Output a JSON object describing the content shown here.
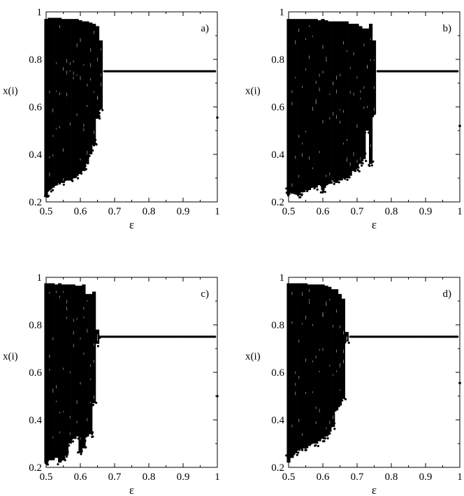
{
  "chart_data": [
    {
      "type": "scatter",
      "panel_label": "a)",
      "xlabel": "ε",
      "ylabel": "x(i)",
      "xlim": [
        0.5,
        1.0
      ],
      "ylim": [
        0.2,
        1.0
      ],
      "xticks": [
        "0.5",
        "0.6",
        "0.7",
        "0.8",
        "0.9",
        "1"
      ],
      "yticks": [
        "0.2",
        "0.4",
        "0.6",
        "0.8",
        "1"
      ],
      "chaotic_band": {
        "eps": [
          0.5,
          0.51,
          0.52,
          0.53,
          0.54,
          0.55,
          0.56,
          0.57,
          0.58,
          0.59,
          0.6,
          0.61,
          0.62,
          0.63,
          0.64,
          0.65,
          0.66
        ],
        "y_max": [
          0.97,
          0.975,
          0.975,
          0.975,
          0.975,
          0.97,
          0.97,
          0.97,
          0.97,
          0.97,
          0.965,
          0.96,
          0.96,
          0.955,
          0.95,
          0.94,
          0.88
        ],
        "y_min": [
          0.22,
          0.25,
          0.26,
          0.27,
          0.28,
          0.28,
          0.29,
          0.29,
          0.3,
          0.31,
          0.32,
          0.33,
          0.36,
          0.4,
          0.44,
          0.55,
          0.59
        ]
      },
      "fixed_point": {
        "eps_from": 0.67,
        "eps_to": 1.0,
        "step": 0.01,
        "y": 0.75
      },
      "isolated_points": [
        [
          1.0,
          0.555
        ]
      ]
    },
    {
      "type": "scatter",
      "panel_label": "b)",
      "xlabel": "ε",
      "ylabel": "x(i)",
      "xlim": [
        0.5,
        1.0
      ],
      "ylim": [
        0.2,
        1.0
      ],
      "xticks": [
        "0.5",
        "0.6",
        "0.7",
        "0.8",
        "0.9",
        "1"
      ],
      "yticks": [
        "0.2",
        "0.4",
        "0.6",
        "0.8",
        "1"
      ],
      "chaotic_band": {
        "eps": [
          0.5,
          0.51,
          0.52,
          0.53,
          0.54,
          0.55,
          0.56,
          0.57,
          0.58,
          0.59,
          0.6,
          0.61,
          0.62,
          0.63,
          0.64,
          0.65,
          0.66,
          0.67,
          0.68,
          0.69,
          0.7,
          0.71,
          0.72,
          0.73,
          0.74,
          0.75
        ],
        "y_max": [
          0.97,
          0.97,
          0.97,
          0.97,
          0.97,
          0.97,
          0.97,
          0.97,
          0.97,
          0.965,
          0.97,
          0.965,
          0.96,
          0.96,
          0.96,
          0.96,
          0.96,
          0.96,
          0.95,
          0.95,
          0.95,
          0.94,
          0.93,
          0.93,
          0.95,
          0.88
        ],
        "y_min": [
          0.23,
          0.24,
          0.24,
          0.23,
          0.24,
          0.25,
          0.25,
          0.26,
          0.26,
          0.27,
          0.25,
          0.27,
          0.28,
          0.29,
          0.28,
          0.29,
          0.3,
          0.3,
          0.31,
          0.33,
          0.34,
          0.36,
          0.38,
          0.5,
          0.36,
          0.57
        ]
      },
      "fixed_point": {
        "eps_from": 0.76,
        "eps_to": 1.0,
        "step": 0.01,
        "y": 0.75
      },
      "isolated_points": [
        [
          1.0,
          0.52
        ]
      ]
    },
    {
      "type": "scatter",
      "panel_label": "c)",
      "xlabel": "ε",
      "ylabel": "x(i)",
      "xlim": [
        0.5,
        1.0
      ],
      "ylim": [
        0.2,
        1.0
      ],
      "xticks": [
        "0.5",
        "0.6",
        "0.7",
        "0.8",
        "0.9",
        "1"
      ],
      "yticks": [
        "0.2",
        "0.4",
        "0.6",
        "0.8",
        "1"
      ],
      "chaotic_band": {
        "eps": [
          0.5,
          0.51,
          0.52,
          0.53,
          0.54,
          0.55,
          0.56,
          0.57,
          0.58,
          0.59,
          0.6,
          0.61,
          0.62,
          0.63,
          0.64,
          0.65
        ],
        "y_max": [
          0.975,
          0.975,
          0.975,
          0.97,
          0.975,
          0.97,
          0.97,
          0.97,
          0.97,
          0.965,
          0.965,
          0.97,
          0.93,
          0.93,
          0.94,
          0.78
        ],
        "y_min": [
          0.22,
          0.23,
          0.23,
          0.24,
          0.22,
          0.23,
          0.25,
          0.3,
          0.32,
          0.33,
          0.26,
          0.28,
          0.33,
          0.34,
          0.47,
          0.72
        ]
      },
      "fixed_point": {
        "eps_from": 0.66,
        "eps_to": 1.0,
        "step": 0.01,
        "y": 0.75
      },
      "isolated_points": [
        [
          1.0,
          0.5
        ]
      ]
    },
    {
      "type": "scatter",
      "panel_label": "d)",
      "xlabel": "ε",
      "ylabel": "x(i)",
      "xlim": [
        0.5,
        1.0
      ],
      "ylim": [
        0.2,
        1.0
      ],
      "xticks": [
        "0.5",
        "0.6",
        "0.7",
        "0.8",
        "0.9",
        "1"
      ],
      "yticks": [
        "0.2",
        "0.4",
        "0.6",
        "0.8",
        "1"
      ],
      "chaotic_band": {
        "eps": [
          0.5,
          0.51,
          0.52,
          0.53,
          0.54,
          0.55,
          0.56,
          0.57,
          0.58,
          0.59,
          0.6,
          0.61,
          0.62,
          0.63,
          0.64,
          0.65,
          0.66,
          0.67
        ],
        "y_max": [
          0.975,
          0.975,
          0.975,
          0.975,
          0.975,
          0.975,
          0.97,
          0.97,
          0.97,
          0.97,
          0.97,
          0.965,
          0.96,
          0.95,
          0.95,
          0.93,
          0.91,
          0.77
        ],
        "y_min": [
          0.22,
          0.24,
          0.26,
          0.27,
          0.28,
          0.28,
          0.29,
          0.3,
          0.3,
          0.31,
          0.32,
          0.33,
          0.35,
          0.37,
          0.44,
          0.46,
          0.49,
          0.73
        ]
      },
      "fixed_point": {
        "eps_from": 0.68,
        "eps_to": 1.0,
        "step": 0.01,
        "y": 0.75
      },
      "isolated_points": [
        [
          1.0,
          0.555
        ]
      ]
    }
  ]
}
